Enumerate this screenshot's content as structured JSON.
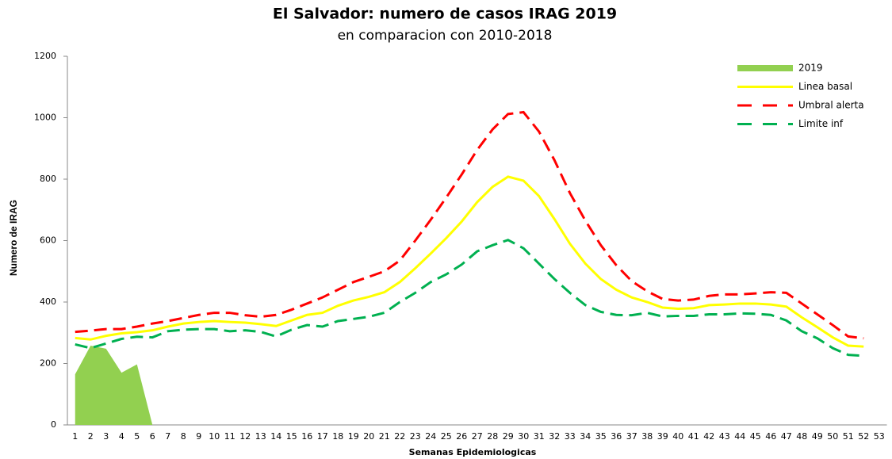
{
  "chart_data": {
    "type": "line",
    "title": "El Salvador: numero de casos IRAG 2019",
    "subtitle": "en comparacion con 2010-2018",
    "y_label": "Numero de IRAG",
    "x_label": "Semanas Epidemiologicas",
    "categories": [
      "1",
      "2",
      "3",
      "4",
      "5",
      "6",
      "7",
      "8",
      "9",
      "10",
      "11",
      "12",
      "13",
      "14",
      "15",
      "16",
      "17",
      "18",
      "19",
      "20",
      "21",
      "22",
      "23",
      "24",
      "25",
      "26",
      "27",
      "28",
      "29",
      "30",
      "31",
      "32",
      "33",
      "34",
      "35",
      "36",
      "37",
      "38",
      "39",
      "40",
      "41",
      "42",
      "43",
      "44",
      "45",
      "46",
      "47",
      "48",
      "49",
      "50",
      "51",
      "52",
      "53"
    ],
    "ylim": [
      0,
      1200
    ],
    "yticks": [
      0,
      200,
      400,
      600,
      800,
      1000,
      1200
    ],
    "grid": false,
    "legend": "top-right",
    "series": [
      {
        "name": "2019",
        "color": "#92d050",
        "style": "area",
        "values": [
          165,
          258,
          248,
          170,
          197,
          0,
          null,
          null,
          null,
          null,
          null,
          null,
          null,
          null,
          null,
          null,
          null,
          null,
          null,
          null,
          null,
          null,
          null,
          null,
          null,
          null,
          null,
          null,
          null,
          null,
          null,
          null,
          null,
          null,
          null,
          null,
          null,
          null,
          null,
          null,
          null,
          null,
          null,
          null,
          null,
          null,
          null,
          null,
          null,
          null,
          null,
          null,
          null
        ]
      },
      {
        "name": "Linea basal",
        "color": "#ffff00",
        "style": "solid",
        "values": [
          283,
          278,
          290,
          298,
          302,
          308,
          320,
          330,
          335,
          338,
          335,
          333,
          328,
          322,
          340,
          358,
          365,
          388,
          405,
          417,
          432,
          465,
          510,
          558,
          608,
          662,
          725,
          775,
          808,
          795,
          745,
          670,
          590,
          525,
          475,
          440,
          415,
          400,
          382,
          378,
          380,
          390,
          392,
          395,
          395,
          392,
          385,
          350,
          318,
          285,
          258,
          255,
          null
        ]
      },
      {
        "name": "Umbral alerta",
        "color": "#ff0000",
        "style": "dashed",
        "values": [
          303,
          307,
          312,
          312,
          320,
          330,
          338,
          348,
          358,
          365,
          365,
          357,
          352,
          358,
          375,
          395,
          415,
          440,
          465,
          482,
          500,
          535,
          600,
          668,
          740,
          815,
          895,
          962,
          1012,
          1018,
          955,
          862,
          755,
          665,
          585,
          520,
          468,
          435,
          410,
          405,
          408,
          420,
          425,
          425,
          428,
          432,
          430,
          395,
          360,
          325,
          288,
          282,
          null
        ]
      },
      {
        "name": "Limite inf",
        "color": "#00b050",
        "style": "dashed",
        "values": [
          262,
          250,
          265,
          280,
          287,
          285,
          305,
          310,
          312,
          312,
          305,
          308,
          303,
          288,
          310,
          325,
          320,
          338,
          345,
          352,
          365,
          400,
          430,
          465,
          490,
          522,
          565,
          585,
          602,
          575,
          525,
          475,
          430,
          390,
          368,
          358,
          357,
          365,
          353,
          355,
          355,
          360,
          360,
          363,
          362,
          358,
          340,
          305,
          282,
          250,
          228,
          225,
          null
        ]
      }
    ]
  }
}
